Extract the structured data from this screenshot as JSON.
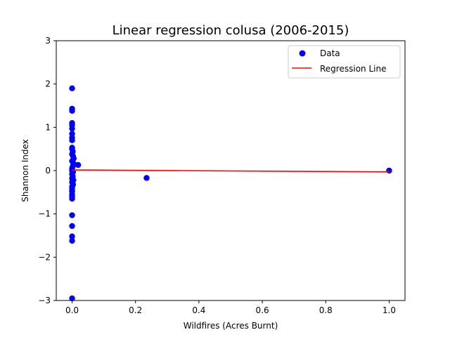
{
  "chart_data": {
    "type": "scatter",
    "title": "Linear regression colusa (2006-2015)",
    "xlabel": "Wildfires (Acres Burnt)",
    "ylabel": "Shannon Index",
    "xlim": [
      -0.05,
      1.05
    ],
    "ylim": [
      -3,
      3
    ],
    "x_ticks": [
      0.0,
      0.2,
      0.4,
      0.6,
      0.8,
      1.0
    ],
    "x_tick_labels": [
      "0.0",
      "0.2",
      "0.4",
      "0.6",
      "0.8",
      "1.0"
    ],
    "y_ticks": [
      -3,
      -2,
      -1,
      0,
      1,
      2,
      3
    ],
    "y_tick_labels": [
      "−3",
      "−2",
      "−1",
      "0",
      "1",
      "2",
      "3"
    ],
    "grid": false,
    "legend_position": "upper-right",
    "series": [
      {
        "name": "Data",
        "kind": "scatter",
        "color": "#0000ff",
        "points": [
          {
            "x": 0.0,
            "y": 1.9
          },
          {
            "x": 0.0,
            "y": 1.43
          },
          {
            "x": 0.0,
            "y": 1.38
          },
          {
            "x": 0.0,
            "y": 1.1
          },
          {
            "x": 0.0,
            "y": 1.05
          },
          {
            "x": 0.0,
            "y": 0.97
          },
          {
            "x": 0.0,
            "y": 0.85
          },
          {
            "x": 0.0,
            "y": 0.76
          },
          {
            "x": 0.0,
            "y": 0.7
          },
          {
            "x": 0.0,
            "y": 0.53
          },
          {
            "x": 0.0,
            "y": 0.5
          },
          {
            "x": 0.002,
            "y": 0.44
          },
          {
            "x": 0.0,
            "y": 0.38
          },
          {
            "x": 0.003,
            "y": 0.33
          },
          {
            "x": 0.005,
            "y": 0.28
          },
          {
            "x": 0.0,
            "y": 0.22
          },
          {
            "x": 0.004,
            "y": 0.17
          },
          {
            "x": 0.002,
            "y": 0.1
          },
          {
            "x": 0.019,
            "y": 0.13
          },
          {
            "x": 0.0,
            "y": 0.05
          },
          {
            "x": 0.0,
            "y": 0.0
          },
          {
            "x": 0.003,
            "y": -0.03
          },
          {
            "x": 0.0,
            "y": -0.08
          },
          {
            "x": 0.002,
            "y": -0.13
          },
          {
            "x": 0.0,
            "y": -0.18
          },
          {
            "x": 0.004,
            "y": -0.22
          },
          {
            "x": 0.0,
            "y": -0.27
          },
          {
            "x": 0.003,
            "y": -0.32
          },
          {
            "x": 0.0,
            "y": -0.37
          },
          {
            "x": 0.0,
            "y": -0.43
          },
          {
            "x": 0.0,
            "y": -0.48
          },
          {
            "x": 0.0,
            "y": -0.55
          },
          {
            "x": 0.0,
            "y": -0.6
          },
          {
            "x": 0.0,
            "y": -0.65
          },
          {
            "x": 0.0,
            "y": -1.03
          },
          {
            "x": 0.0,
            "y": -1.28
          },
          {
            "x": 0.0,
            "y": -1.52
          },
          {
            "x": 0.0,
            "y": -1.62
          },
          {
            "x": 0.0,
            "y": -2.95
          },
          {
            "x": 0.235,
            "y": -0.17
          },
          {
            "x": 1.0,
            "y": 0.0
          }
        ]
      },
      {
        "name": "Regression Line",
        "kind": "line",
        "color": "#ff0000",
        "points": [
          {
            "x": 0.0,
            "y": 0.015
          },
          {
            "x": 1.0,
            "y": -0.03
          }
        ]
      }
    ]
  }
}
